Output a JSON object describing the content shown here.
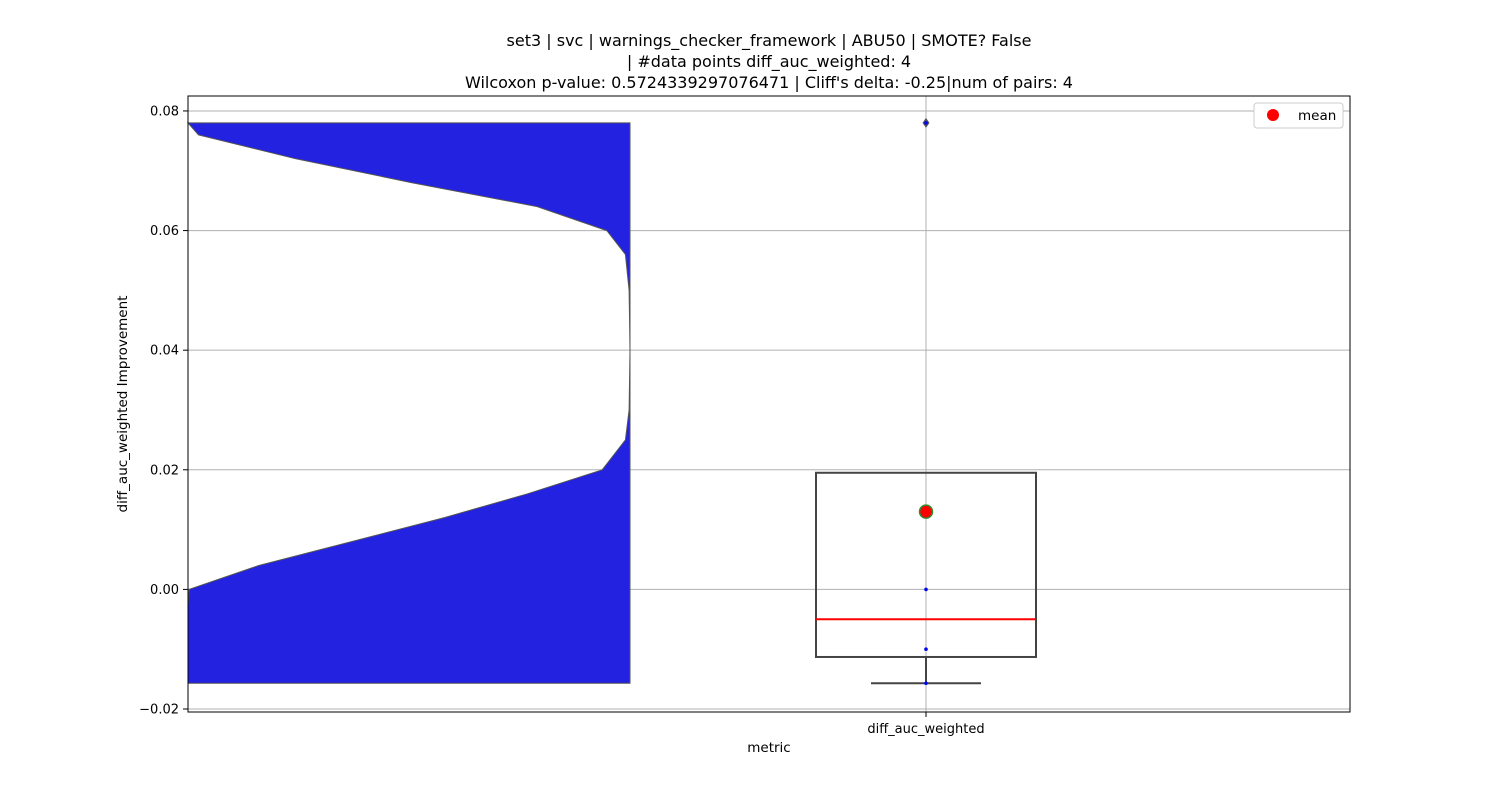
{
  "chart_data": {
    "type": "violin+box",
    "title_lines": [
      "set3 | svc | warnings_checker_framework | ABU50 | SMOTE? False",
      "| #data points diff_auc_weighted: 4",
      "Wilcoxon p-value: 0.5724339297076471 | Cliff's delta: -0.25|num of pairs: 4"
    ],
    "xlabel": "metric",
    "ylabel": "diff_auc_weighted Improvement",
    "categories": [
      "diff_auc_weighted"
    ],
    "ylim": [
      -0.0205,
      0.0825
    ],
    "yticks": [
      -0.02,
      0.0,
      0.02,
      0.04,
      0.06,
      0.08
    ],
    "ytick_labels": [
      "−0.02",
      "0.00",
      "0.02",
      "0.04",
      "0.06",
      "0.08"
    ],
    "grid": true,
    "legend": {
      "placement": "top-right",
      "entries": [
        {
          "label": "mean",
          "color": "#ff0000"
        }
      ]
    },
    "points": [
      -0.0157,
      -0.01,
      0.0,
      0.078
    ],
    "box": {
      "q1": -0.0113,
      "median": -0.005,
      "q3": 0.0195,
      "whisker_low": -0.0157,
      "whisker_high": 0.0195,
      "outliers": [
        0.078
      ]
    },
    "mean": 0.013,
    "violin_density": [
      [
        -0.0157,
        1.0
      ],
      [
        -0.01,
        1.0
      ],
      [
        -0.0028,
        1.0
      ],
      [
        0.0,
        0.95
      ],
      [
        0.004,
        0.8
      ],
      [
        0.008,
        0.6
      ],
      [
        0.012,
        0.4
      ],
      [
        0.016,
        0.22
      ],
      [
        0.02,
        0.06
      ],
      [
        0.025,
        0.01
      ],
      [
        0.03,
        0.002
      ],
      [
        0.04,
        0.0
      ],
      [
        0.05,
        0.002
      ],
      [
        0.056,
        0.01
      ],
      [
        0.06,
        0.05
      ],
      [
        0.064,
        0.2
      ],
      [
        0.068,
        0.47
      ],
      [
        0.072,
        0.72
      ],
      [
        0.076,
        0.93
      ],
      [
        0.078,
        0.99
      ]
    ],
    "colors": {
      "violin": "#2222e0",
      "median": "#ff0000",
      "box": "#444444",
      "mean_fill": "#ff0000",
      "mean_edge": "#2e8b2e",
      "points": "#0000ff",
      "grid": "#b0b0b0"
    }
  }
}
